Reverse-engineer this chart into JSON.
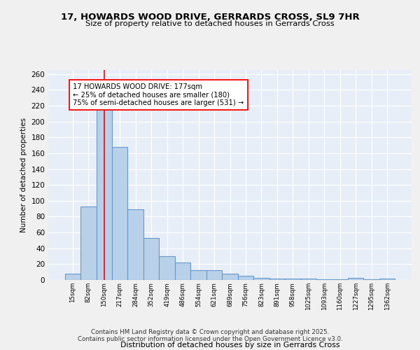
{
  "title1": "17, HOWARDS WOOD DRIVE, GERRARDS CROSS, SL9 7HR",
  "title2": "Size of property relative to detached houses in Gerrards Cross",
  "xlabel": "Distribution of detached houses by size in Gerrards Cross",
  "ylabel": "Number of detached properties",
  "bar_values": [
    8,
    93,
    240,
    168,
    89,
    53,
    30,
    22,
    12,
    12,
    8,
    5,
    3,
    2,
    2,
    2,
    1,
    1,
    3,
    1,
    2
  ],
  "categories": [
    "15sqm",
    "82sqm",
    "150sqm",
    "217sqm",
    "284sqm",
    "352sqm",
    "419sqm",
    "486sqm",
    "554sqm",
    "621sqm",
    "689sqm",
    "756sqm",
    "823sqm",
    "891sqm",
    "958sqm",
    "1025sqm",
    "1093sqm",
    "1160sqm",
    "1227sqm",
    "1295sqm",
    "1362sqm"
  ],
  "bar_color": "#b8d0e8",
  "bar_edge_color": "#6699cc",
  "bg_color": "#e8eef8",
  "grid_color": "#ffffff",
  "red_line_x": 2.0,
  "annotation_box_text": "17 HOWARDS WOOD DRIVE: 177sqm\n← 25% of detached houses are smaller (180)\n75% of semi-detached houses are larger (531) →",
  "footer_line1": "Contains HM Land Registry data © Crown copyright and database right 2025.",
  "footer_line2": "Contains public sector information licensed under the Open Government Licence v3.0.",
  "ylim": [
    0,
    265
  ],
  "yticks": [
    0,
    20,
    40,
    60,
    80,
    100,
    120,
    140,
    160,
    180,
    200,
    220,
    240,
    260
  ],
  "fig_bg": "#f0f0f0"
}
